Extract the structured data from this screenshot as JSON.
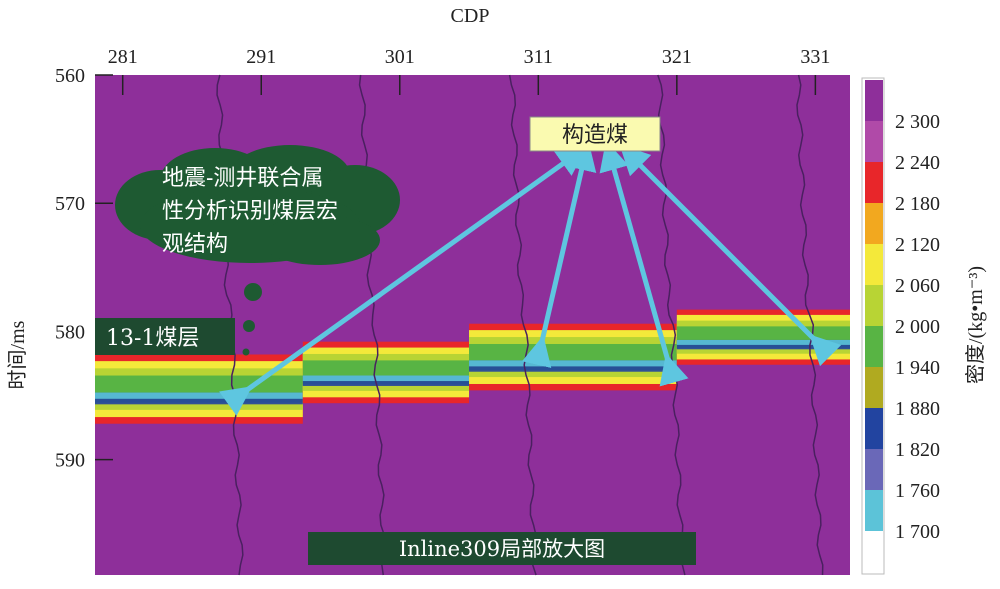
{
  "chart_data": {
    "type": "heatmap",
    "xlabel": "CDP",
    "ylabel": "时间/ms",
    "x_ticks": [
      "281",
      "291",
      "301",
      "311",
      "321",
      "331"
    ],
    "y_ticks": [
      "560",
      "570",
      "580",
      "590"
    ],
    "xlim": [
      279,
      333.5
    ],
    "ylim": [
      560,
      599
    ],
    "y_inverted": true,
    "background_value": "2 300+",
    "colorbar": {
      "label": "密度/(kg•m⁻³)",
      "ticks": [
        "2 300",
        "2 240",
        "2 180",
        "2 120",
        "2 060",
        "2 000",
        "1 940",
        "1 880",
        "1 820",
        "1 760",
        "1 700"
      ],
      "colors": [
        "#8e2f9a",
        "#b04aa8",
        "#e8262a",
        "#f2a81f",
        "#f4e93a",
        "#b8d434",
        "#58b444",
        "#b0aa20",
        "#2244a0",
        "#6a68b8",
        "#5cc3d8",
        "#ffffff"
      ]
    },
    "coal_seam_segments": [
      {
        "cdp": [
          279,
          294
        ],
        "top_ms": 581.8,
        "bottom_ms": 587.2
      },
      {
        "cdp": [
          294,
          306
        ],
        "top_ms": 580.8,
        "bottom_ms": 585.6
      },
      {
        "cdp": [
          306,
          321
        ],
        "top_ms": 579.4,
        "bottom_ms": 584.6
      },
      {
        "cdp": [
          321,
          333.5
        ],
        "top_ms": 578.3,
        "bottom_ms": 582.6
      }
    ],
    "fault_cdps": [
      289.5,
      299.8,
      310.5,
      321,
      331
    ],
    "annotations": {
      "structure_coal": "构造煤",
      "cloud_text": [
        "地震-测井联合属",
        "性分析识别煤层宏",
        "观结构"
      ],
      "seam_label": "13-1煤层",
      "caption": "Inline309局部放大图"
    }
  }
}
